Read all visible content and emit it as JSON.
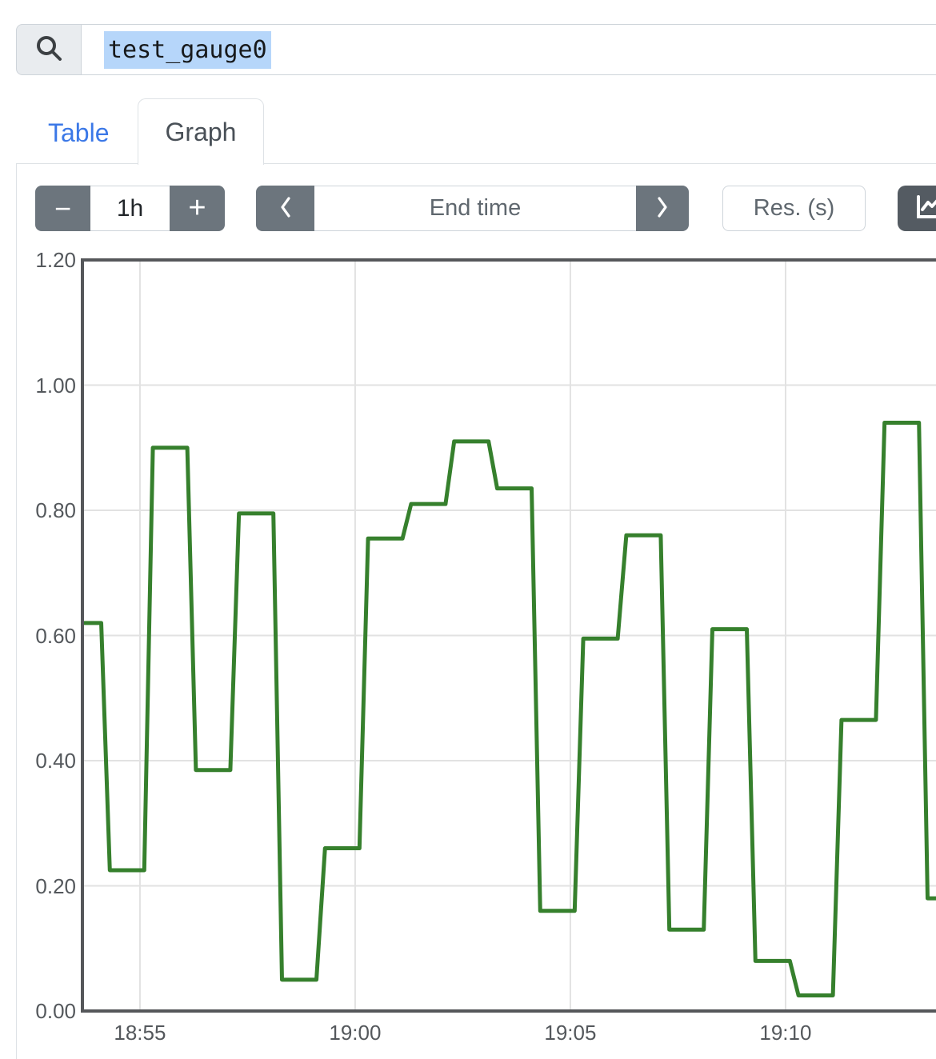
{
  "search": {
    "icon": "magnifier-icon",
    "query": "test_gauge0"
  },
  "tabs": [
    {
      "label": "Table",
      "active": false
    },
    {
      "label": "Graph",
      "active": true
    }
  ],
  "toolbar": {
    "minus_label": "−",
    "duration_value": "1h",
    "plus_label": "+",
    "prev_icon": "chevron-left-icon",
    "end_time_placeholder": "End time",
    "next_icon": "chevron-right-icon",
    "resolution_placeholder": "Res. (s)",
    "stacked_button_icon": "line-chart-icon"
  },
  "colors": {
    "link_blue": "#3b78e7",
    "button_gray": "#6c757d",
    "button_dark": "#545b62",
    "selection_blue": "#b6d6fa",
    "input_border": "#ced4da",
    "tab_border": "#dee2e6",
    "line_green": "#36802d",
    "axis_dark": "#55575a",
    "grid_gray": "#e2e2e2",
    "tick_text": "#54585c"
  },
  "chart_data": {
    "type": "line",
    "title": "",
    "xlabel": "",
    "ylabel": "",
    "legend": "none",
    "grid": true,
    "step_interpolation": {
      "offset_min": 0.3,
      "hold_min": 0.8
    },
    "ylim": [
      0,
      1.2
    ],
    "y_ticks": [
      0.0,
      0.2,
      0.4,
      0.6,
      0.8,
      1.0,
      1.2
    ],
    "x_ticks": [
      "18:55",
      "19:00",
      "19:05",
      "19:10"
    ],
    "x_window_minutes": [
      1133.7,
      1153.5
    ],
    "series": [
      {
        "name": "test_gauge0",
        "points": [
          {
            "time": "18:53",
            "value": 0.62
          },
          {
            "time": "18:54",
            "value": 0.225
          },
          {
            "time": "18:55",
            "value": 0.9
          },
          {
            "time": "18:56",
            "value": 0.385
          },
          {
            "time": "18:57",
            "value": 0.795
          },
          {
            "time": "18:58",
            "value": 0.05
          },
          {
            "time": "18:59",
            "value": 0.26
          },
          {
            "time": "19:00",
            "value": 0.755
          },
          {
            "time": "19:01",
            "value": 0.81
          },
          {
            "time": "19:02",
            "value": 0.91
          },
          {
            "time": "19:03",
            "value": 0.835
          },
          {
            "time": "19:04",
            "value": 0.16
          },
          {
            "time": "19:05",
            "value": 0.595
          },
          {
            "time": "19:06",
            "value": 0.76
          },
          {
            "time": "19:07",
            "value": 0.13
          },
          {
            "time": "19:08",
            "value": 0.61
          },
          {
            "time": "19:09",
            "value": 0.08
          },
          {
            "time": "19:10",
            "value": 0.025
          },
          {
            "time": "19:11",
            "value": 0.465
          },
          {
            "time": "19:12",
            "value": 0.94
          },
          {
            "time": "19:13",
            "value": 0.18
          }
        ]
      }
    ]
  }
}
